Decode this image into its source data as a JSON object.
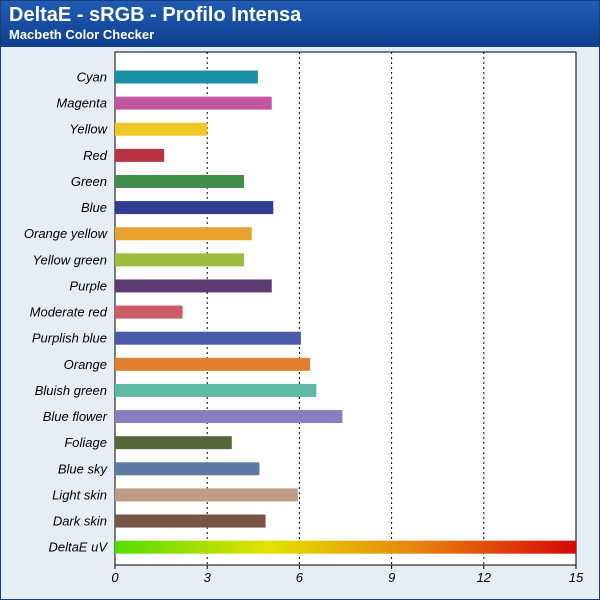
{
  "header": {
    "title": "DeltaE - sRGB - Profilo Intensa",
    "subtitle": "Macbeth Color Checker"
  },
  "chart_data": {
    "type": "bar",
    "orientation": "horizontal",
    "title": "DeltaE - sRGB - Profilo Intensa",
    "subtitle": "Macbeth Color Checker",
    "categories": [
      "Cyan",
      "Magenta",
      "Yellow",
      "Red",
      "Green",
      "Blue",
      "Orange yellow",
      "Yellow green",
      "Purple",
      "Moderate red",
      "Purplish blue",
      "Orange",
      "Bluish green",
      "Blue flower",
      "Foliage",
      "Blue sky",
      "Light skin",
      "Dark skin",
      "DeltaE uV"
    ],
    "values": [
      4.65,
      5.1,
      3.0,
      1.6,
      4.2,
      5.15,
      4.45,
      4.2,
      5.1,
      2.2,
      6.05,
      6.35,
      6.55,
      7.4,
      3.8,
      4.7,
      5.95,
      4.9,
      15.0
    ],
    "colors": [
      "#1a8fa6",
      "#c255a0",
      "#f0c823",
      "#b83242",
      "#3f8e4a",
      "#2e3c94",
      "#e8a32e",
      "#9cbe3c",
      "#5e3a72",
      "#cc5c66",
      "#4a5aaa",
      "#e0802e",
      "#5ebaa6",
      "#8a7ec0",
      "#53683a",
      "#5e7aa4",
      "#c09c86",
      "#785446",
      "gradient"
    ],
    "gradient_stops": [
      "#55dd00",
      "#e4e200",
      "#e7800e",
      "#d80606"
    ],
    "xlim": [
      0,
      15
    ],
    "xticks": [
      0,
      3,
      6,
      9,
      12,
      15
    ],
    "grid": true,
    "xlabel": "",
    "ylabel": ""
  }
}
